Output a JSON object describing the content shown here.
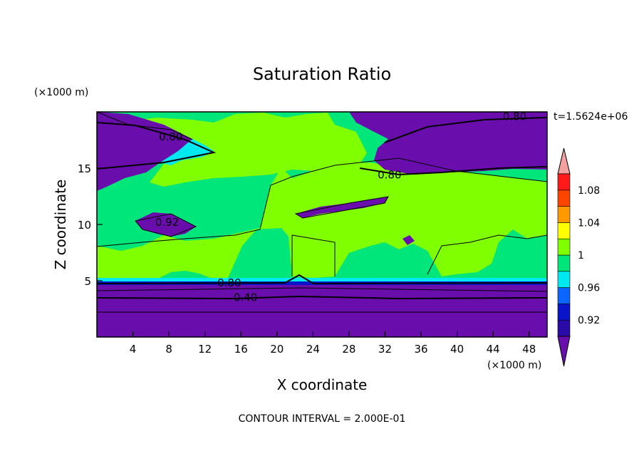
{
  "chart_data": {
    "type": "heatmap",
    "title": "Saturation Ratio",
    "xlabel": "X coordinate",
    "ylabel": "Z coordinate",
    "x_unit": "(×1000 m)",
    "y_unit": "(×1000 m)",
    "time_label": "t=1.5624e+06",
    "footer": "CONTOUR INTERVAL = 2.000E-01",
    "xlim": [
      0,
      50
    ],
    "ylim": [
      0,
      20
    ],
    "x_ticks": [
      4,
      8,
      12,
      16,
      20,
      24,
      28,
      32,
      36,
      40,
      44,
      48
    ],
    "y_ticks": [
      5,
      10,
      15
    ],
    "contour_labels": [
      {
        "text": "0.80",
        "x": 14.7,
        "z": 4.8
      },
      {
        "text": "0.40",
        "x": 16.5,
        "z": 3.5
      },
      {
        "text": "0.80",
        "x": 32.5,
        "z": 14.4
      },
      {
        "text": "0.80",
        "x": 46.4,
        "z": 19.6
      },
      {
        "text": "0.80",
        "x": 8.2,
        "z": 17.8
      },
      {
        "text": "0.92",
        "x": 7.8,
        "z": 10.2
      }
    ],
    "colorbar": {
      "levels": [
        0.92,
        0.94,
        0.96,
        0.98,
        1.0,
        1.02,
        1.04,
        1.06,
        1.08
      ],
      "tick_labels": [
        "0.92",
        "0.96",
        "1",
        "1.04",
        "1.08"
      ],
      "colors": [
        "#6a0dad",
        "#2a0ba8",
        "#0a14c8",
        "#0a66ff",
        "#00e8f0",
        "#00e67a",
        "#80ff00",
        "#ffff00",
        "#ff9900",
        "#ff4400",
        "#ff1a1a",
        "#f4a0a0"
      ]
    }
  }
}
